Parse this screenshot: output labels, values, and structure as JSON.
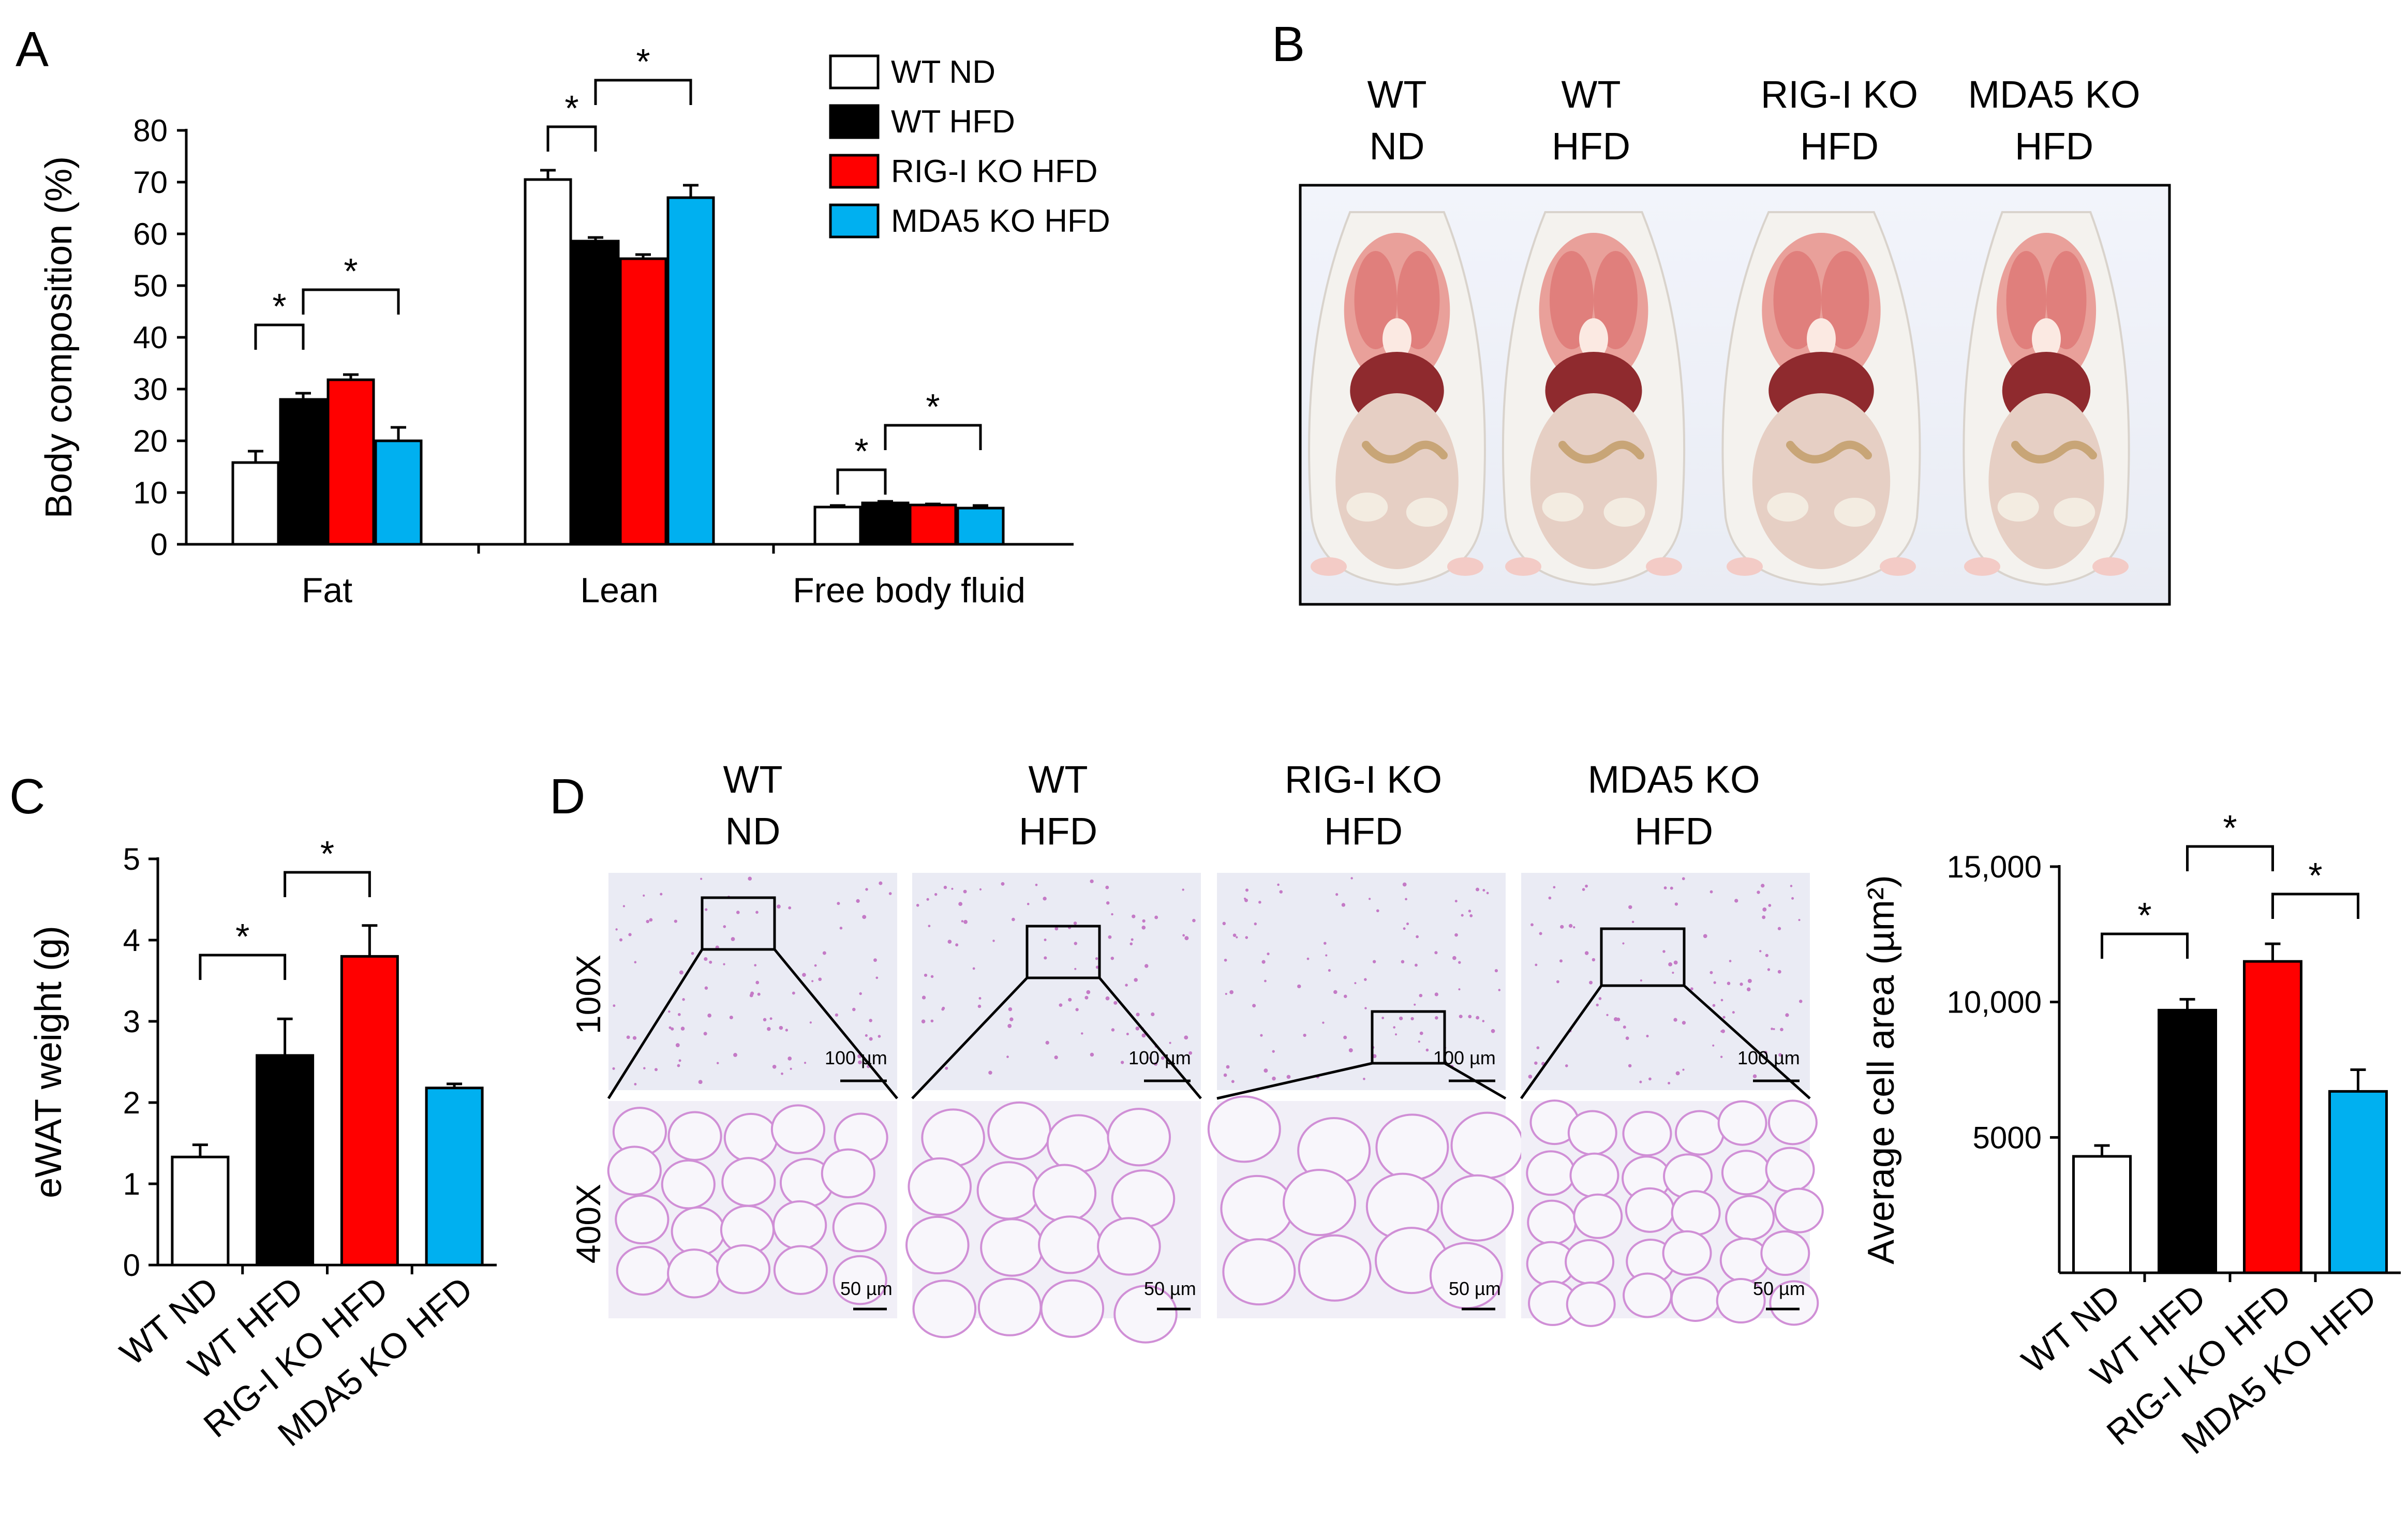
{
  "colors": {
    "WT ND": "#ffffff",
    "WT HFD": "#000000",
    "RIG-I KO HFD": "#ff0000",
    "MDA5 KO HFD": "#00b0f0"
  },
  "panels": {
    "A": {
      "letter": "A"
    },
    "B": {
      "letter": "B",
      "groups": [
        {
          "line1": "WT",
          "line2": "ND"
        },
        {
          "line1": "WT",
          "line2": "HFD"
        },
        {
          "line1": "RIG-I KO",
          "line2": "HFD"
        },
        {
          "line1": "MDA5 KO",
          "line2": "HFD"
        }
      ]
    },
    "C": {
      "letter": "C"
    },
    "D": {
      "letter": "D",
      "groups": [
        {
          "line1": "WT",
          "line2": "ND"
        },
        {
          "line1": "WT",
          "line2": "HFD"
        },
        {
          "line1": "RIG-I KO",
          "line2": "HFD"
        },
        {
          "line1": "MDA5 KO",
          "line2": "HFD"
        }
      ],
      "mag_top": "100X",
      "mag_bottom": "400X",
      "scale_top": "100 µm",
      "scale_bottom": "50 µm"
    }
  },
  "chart_data": [
    {
      "panel": "A",
      "type": "bar",
      "categories": [
        "Fat",
        "Lean",
        "Free body fluid"
      ],
      "series": [
        {
          "name": "WT ND",
          "values": [
            15.8,
            70.5,
            7.2
          ],
          "errors": [
            2.2,
            1.8,
            0.3
          ]
        },
        {
          "name": "WT HFD",
          "values": [
            28.0,
            58.6,
            8.0
          ],
          "errors": [
            1.2,
            0.7,
            0.3
          ]
        },
        {
          "name": "RIG-I KO HFD",
          "values": [
            31.8,
            55.2,
            7.6
          ],
          "errors": [
            1.0,
            0.8,
            0.2
          ]
        },
        {
          "name": "MDA5 KO HFD",
          "values": [
            20.0,
            67.0,
            7.0
          ],
          "errors": [
            2.6,
            2.4,
            0.5
          ]
        }
      ],
      "ylabel": "Body composition (%)",
      "ylim": [
        0,
        80
      ],
      "yticks": [
        "0",
        "10",
        "20",
        "30",
        "40",
        "50",
        "60",
        "70",
        "80"
      ],
      "legend": "top-right",
      "significance": [
        {
          "category": 0,
          "from": 0,
          "to": 1,
          "label": "*"
        },
        {
          "category": 0,
          "from": 1,
          "to": 3,
          "label": "*"
        },
        {
          "category": 1,
          "from": 0,
          "to": 1,
          "label": "*"
        },
        {
          "category": 1,
          "from": 1,
          "to": 3,
          "label": "*"
        },
        {
          "category": 2,
          "from": 0,
          "to": 1,
          "label": "*"
        },
        {
          "category": 2,
          "from": 1,
          "to": 3,
          "label": "*"
        }
      ]
    },
    {
      "panel": "C",
      "type": "bar",
      "categories": [
        "WT ND",
        "WT HFD",
        "RIG-I KO HFD",
        "MDA5 KO HFD"
      ],
      "values": [
        1.33,
        2.58,
        3.8,
        2.18
      ],
      "errors": [
        0.15,
        0.45,
        0.38,
        0.05
      ],
      "ylabel": "eWAT weight (g)",
      "ylim": [
        0,
        5
      ],
      "yticks": [
        "0",
        "1",
        "2",
        "3",
        "4",
        "5"
      ],
      "significance": [
        {
          "from": 0,
          "to": 1,
          "label": "*"
        },
        {
          "from": 1,
          "to": 2,
          "label": "*"
        }
      ]
    },
    {
      "panel": "D",
      "type": "bar",
      "categories": [
        "WT ND",
        "WT HFD",
        "RIG-I KO HFD",
        "MDA5 KO HFD"
      ],
      "values": [
        4300,
        9700,
        11500,
        6700
      ],
      "errors": [
        400,
        400,
        650,
        800
      ],
      "ylabel": "Average cell area (µm²)",
      "ylim": [
        0,
        15000
      ],
      "yticks": [
        {
          "value": 5000,
          "label": "5000"
        },
        {
          "value": 10000,
          "label": "10,000"
        },
        {
          "value": 15000,
          "label": "15,000"
        }
      ],
      "significance": [
        {
          "from": 0,
          "to": 1,
          "label": "*"
        },
        {
          "from": 1,
          "to": 2,
          "label": "*"
        },
        {
          "from": 2,
          "to": 3,
          "label": "*"
        }
      ]
    }
  ]
}
